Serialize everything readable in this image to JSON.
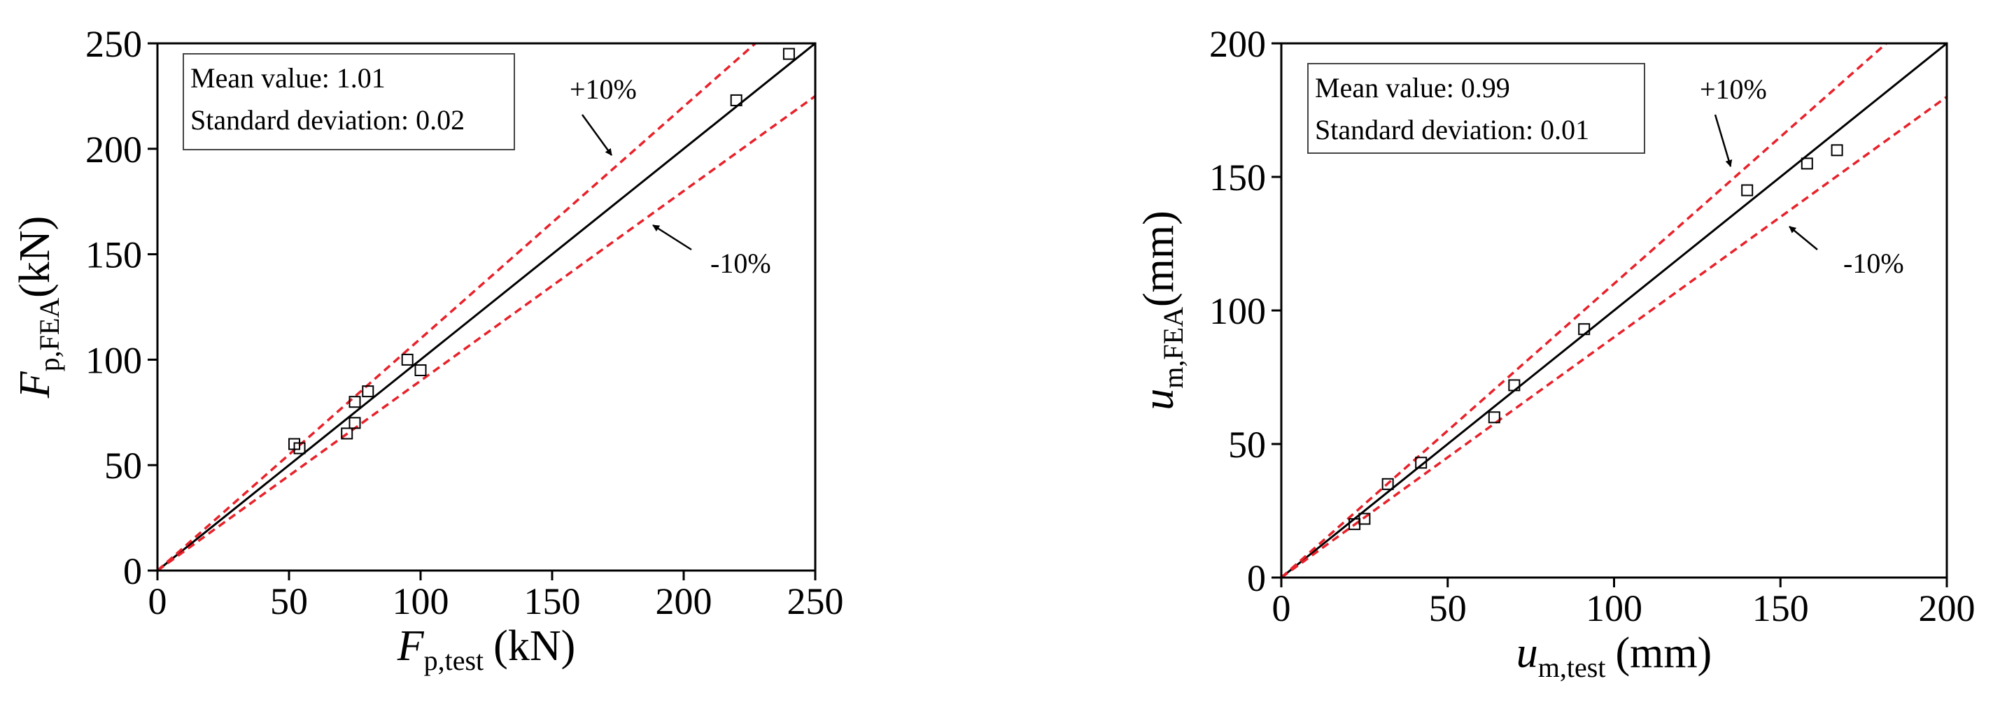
{
  "chart_data": [
    {
      "type": "scatter",
      "x_label": {
        "symbol": "F",
        "subscript": "p,test",
        "unit": "(kN)"
      },
      "y_label": {
        "symbol": "F",
        "subscript": "p,FEA",
        "unit": "(kN)"
      },
      "annotations": [
        "Mean value: 1.01",
        "Standard deviation: 0.02"
      ],
      "x": [
        52,
        54,
        72,
        75,
        75,
        80,
        95,
        100,
        220,
        240
      ],
      "y": [
        60,
        58,
        65,
        80,
        70,
        85,
        100,
        95,
        223,
        245
      ],
      "marker_color": "#000000",
      "reference_lines": [
        {
          "slope": 1,
          "color": "#000000"
        },
        {
          "slope": 1.1,
          "label": "+10%",
          "color": "#e8212a"
        },
        {
          "slope": 0.9,
          "label": "-10%",
          "color": "#e8212a"
        }
      ],
      "xlim": [
        0,
        250
      ],
      "ylim": [
        0,
        250
      ],
      "xticks": [
        0,
        50,
        100,
        150,
        200,
        250
      ],
      "yticks": [
        0,
        50,
        100,
        150,
        200,
        250
      ]
    },
    {
      "type": "scatter",
      "x_label": {
        "symbol": "u",
        "subscript": "m,test",
        "unit": "(mm)"
      },
      "y_label": {
        "symbol": "u",
        "subscript": "m,FEA",
        "unit": "(mm)"
      },
      "annotations": [
        "Mean value: 0.99",
        "Standard deviation: 0.01"
      ],
      "x": [
        22,
        25,
        32,
        42,
        64,
        70,
        91,
        140,
        158,
        167
      ],
      "y": [
        20,
        22,
        35,
        43,
        60,
        72,
        93,
        145,
        155,
        160
      ],
      "marker_color": "#000000",
      "reference_lines": [
        {
          "slope": 1,
          "color": "#000000"
        },
        {
          "slope": 1.1,
          "label": "+10%",
          "color": "#e8212a"
        },
        {
          "slope": 0.9,
          "label": "-10%",
          "color": "#e8212a"
        }
      ],
      "xlim": [
        0,
        200
      ],
      "ylim": [
        0,
        200
      ],
      "xticks": [
        0,
        50,
        100,
        150,
        200
      ],
      "yticks": [
        0,
        50,
        100,
        150,
        200
      ]
    }
  ]
}
